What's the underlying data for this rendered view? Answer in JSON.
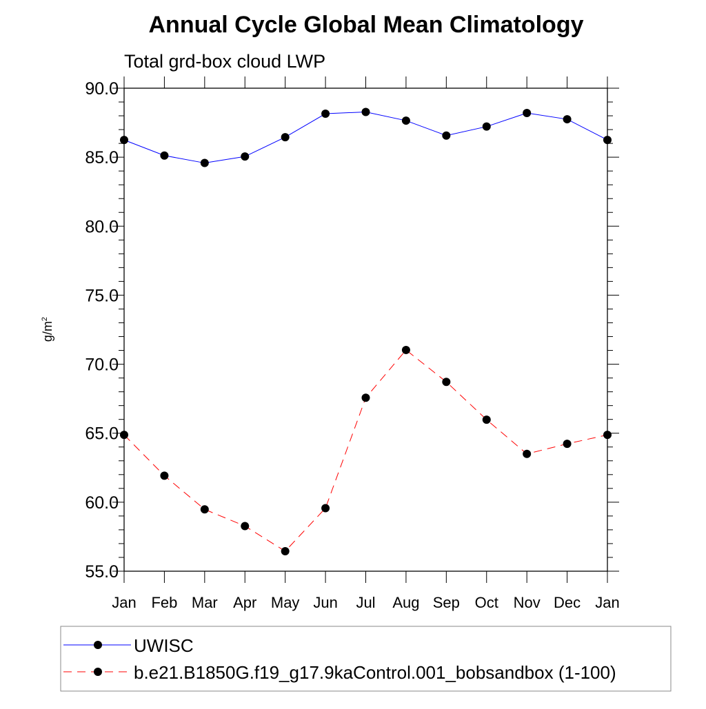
{
  "chart_data": {
    "type": "line",
    "title": "Annual Cycle Global Mean Climatology",
    "subtitle": "Total grd-box cloud LWP",
    "ylabel": "g/m",
    "ylabel_sup": "2",
    "xlabel": "",
    "ylim": [
      55.0,
      90.0
    ],
    "yticks": [
      "55.0",
      "60.0",
      "65.0",
      "70.0",
      "75.0",
      "80.0",
      "85.0",
      "90.0"
    ],
    "ytick_values": [
      55,
      60,
      65,
      70,
      75,
      80,
      85,
      90
    ],
    "categories": [
      "Jan",
      "Feb",
      "Mar",
      "Apr",
      "May",
      "Jun",
      "Jul",
      "Aug",
      "Sep",
      "Oct",
      "Nov",
      "Dec",
      "Jan"
    ],
    "series": [
      {
        "name": "UWISC",
        "color": "#0000ff",
        "dash": "solid",
        "values": [
          86.25,
          85.12,
          84.58,
          85.05,
          86.45,
          88.15,
          88.28,
          87.65,
          86.57,
          87.22,
          88.2,
          87.75,
          86.25
        ]
      },
      {
        "name": "b.e21.B1850G.f19_g17.9kaControl.001_bobsandbox (1-100)",
        "color": "#ff0000",
        "dash": "dashed",
        "values": [
          64.88,
          61.92,
          59.48,
          58.27,
          56.45,
          59.57,
          67.57,
          71.03,
          68.72,
          65.98,
          63.5,
          64.23,
          64.88
        ]
      }
    ],
    "legend_position": "bottom",
    "grid": false
  }
}
